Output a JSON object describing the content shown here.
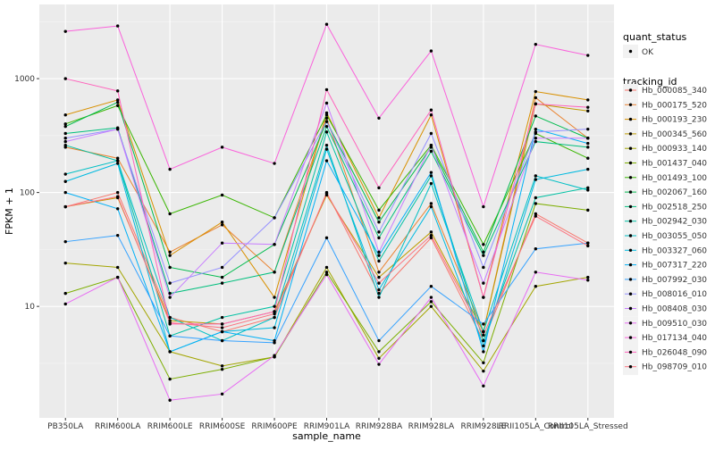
{
  "chart_data": {
    "type": "line",
    "log_y": true,
    "grid": true,
    "xlabel": "sample_name",
    "ylabel": "FPKM + 1",
    "categories": [
      "PB350LA",
      "RRIM600LA",
      "RRIM600LE",
      "RRIM600SE",
      "RRIM600PE",
      "RRIM901LA",
      "RRIM928BA",
      "RRIM928LA",
      "RRIM928LE",
      "RRII105LA_Control",
      "RRII105LA_Stressed"
    ],
    "ylim": [
      1.05,
      4480
    ],
    "yticks": [
      10,
      100,
      1000
    ],
    "point_legend_title": "quant_status",
    "point_legend_label": "OK",
    "legend_title": "tracking_id",
    "series": [
      {
        "name": "Hb_000085_340",
        "color": "#F8766D",
        "values": [
          75,
          100,
          8,
          6,
          8,
          100,
          13,
          40,
          5,
          65,
          36
        ]
      },
      {
        "name": "Hb_000175_520",
        "color": "#EA8331",
        "values": [
          250,
          200,
          30,
          52,
          20,
          450,
          20,
          80,
          6,
          680,
          300
        ]
      },
      {
        "name": "Hb_000193_230",
        "color": "#D89000",
        "values": [
          480,
          650,
          28,
          55,
          12,
          500,
          60,
          480,
          12,
          770,
          650
        ]
      },
      {
        "name": "Hb_000345_560",
        "color": "#C09B00",
        "values": [
          75,
          90,
          7.5,
          7,
          9,
          95,
          18,
          45,
          6,
          600,
          520
        ]
      },
      {
        "name": "Hb_000933_140",
        "color": "#A3A500",
        "values": [
          24,
          22,
          4,
          3,
          3.6,
          22,
          3.5,
          10,
          2.7,
          15,
          18
        ]
      },
      {
        "name": "Hb_001437_040",
        "color": "#7CAE00",
        "values": [
          13,
          18,
          2.3,
          2.8,
          3.6,
          20,
          4,
          11,
          3.2,
          80,
          70
        ]
      },
      {
        "name": "Hb_001493_100",
        "color": "#39B600",
        "values": [
          400,
          580,
          65,
          95,
          60,
          480,
          70,
          260,
          35,
          330,
          200
        ]
      },
      {
        "name": "Hb_002067_160",
        "color": "#00BB4E",
        "values": [
          380,
          620,
          22,
          18,
          35,
          420,
          55,
          250,
          30,
          470,
          300
        ]
      },
      {
        "name": "Hb_002518_250",
        "color": "#00BF7D",
        "values": [
          330,
          370,
          13,
          16,
          20,
          380,
          40,
          230,
          28,
          280,
          250
        ]
      },
      {
        "name": "Hb_002942_030",
        "color": "#00C1A3",
        "values": [
          260,
          190,
          5.5,
          8,
          10,
          340,
          25,
          140,
          5,
          90,
          110
        ]
      },
      {
        "name": "Hb_003055_050",
        "color": "#00BFC4",
        "values": [
          145,
          190,
          8,
          5,
          8,
          260,
          12,
          120,
          6,
          140,
          105
        ]
      },
      {
        "name": "Hb_003327_060",
        "color": "#00BAE0",
        "values": [
          125,
          180,
          4,
          6,
          6.5,
          240,
          14,
          75,
          4.5,
          130,
          160
        ]
      },
      {
        "name": "Hb_007317_220",
        "color": "#00B0F6",
        "values": [
          100,
          72,
          4,
          6,
          5,
          190,
          28,
          150,
          4,
          360,
          270
        ]
      },
      {
        "name": "Hb_007992_030",
        "color": "#35A2FF",
        "values": [
          37,
          42,
          5.5,
          5,
          4.8,
          40,
          5,
          15,
          7,
          32,
          36
        ]
      },
      {
        "name": "Hb_008016_010",
        "color": "#9590FF",
        "values": [
          300,
          360,
          16,
          22,
          60,
          420,
          45,
          330,
          22,
          340,
          360
        ]
      },
      {
        "name": "Hb_008408_030",
        "color": "#C77CFF",
        "values": [
          280,
          360,
          12,
          36,
          35,
          610,
          30,
          260,
          16,
          300,
          300
        ]
      },
      {
        "name": "Hb_009510_030",
        "color": "#E76BF3",
        "values": [
          10.5,
          18,
          1.5,
          1.7,
          3.7,
          19,
          3.1,
          12,
          2,
          20,
          17
        ]
      },
      {
        "name": "Hb_017134_040",
        "color": "#FA62DB",
        "values": [
          2600,
          2900,
          160,
          250,
          180,
          3000,
          450,
          1750,
          75,
          2000,
          1600
        ]
      },
      {
        "name": "Hb_026048_090",
        "color": "#FF62BC",
        "values": [
          1000,
          780,
          7,
          7,
          9,
          800,
          110,
          530,
          12,
          600,
          560
        ]
      },
      {
        "name": "Hb_098709_010",
        "color": "#FC717F",
        "values": [
          75,
          92,
          7.2,
          6.5,
          8.6,
          98,
          16,
          42,
          5.6,
          62,
          34
        ]
      }
    ]
  }
}
